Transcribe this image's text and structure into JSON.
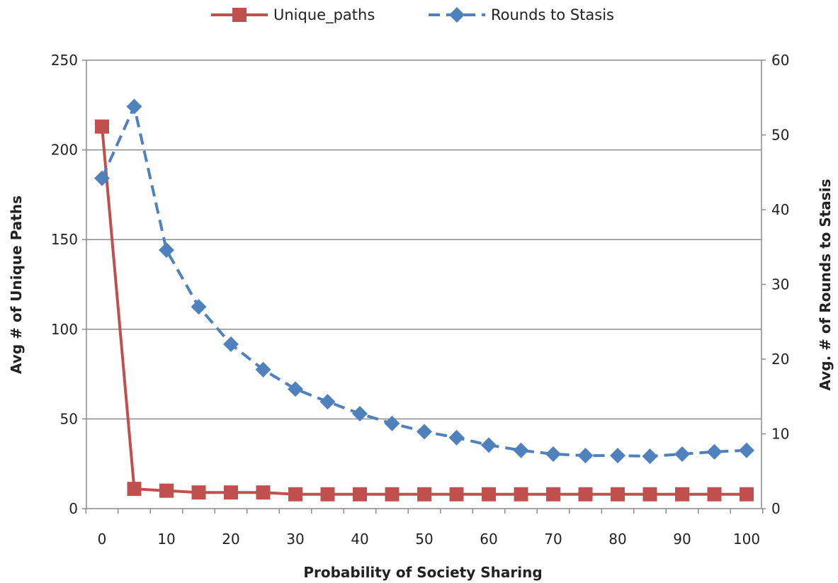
{
  "chart_data": {
    "type": "line",
    "x": [
      0,
      5,
      10,
      15,
      20,
      25,
      30,
      35,
      40,
      45,
      50,
      55,
      60,
      65,
      70,
      75,
      80,
      85,
      90,
      95,
      100
    ],
    "series": [
      {
        "name": "Unique_paths",
        "axis": "left",
        "color": "#c0504d",
        "style": "solid",
        "marker": "square",
        "values": [
          213,
          11,
          10,
          9,
          9,
          9,
          8,
          8,
          8,
          8,
          8,
          8,
          8,
          8,
          8,
          8,
          8,
          8,
          8,
          8,
          8
        ]
      },
      {
        "name": "Rounds to Stasis",
        "axis": "right",
        "color": "#4f81bd",
        "style": "dashed",
        "marker": "diamond",
        "values": [
          44.2,
          53.8,
          34.6,
          27.0,
          22.0,
          18.6,
          16.0,
          14.3,
          12.7,
          11.4,
          10.3,
          9.5,
          8.5,
          7.8,
          7.3,
          7.1,
          7.1,
          7.0,
          7.3,
          7.6,
          7.8
        ]
      }
    ],
    "xlabel": "Probability of Society Sharing",
    "ylabel": "Avg # of Unique  Paths",
    "y2label": "Avg. # of Rounds to Stasis",
    "xticks": [
      "0",
      "10",
      "20",
      "30",
      "40",
      "50",
      "60",
      "70",
      "80",
      "90",
      "100"
    ],
    "yticks": [
      "0",
      "50",
      "100",
      "150",
      "200",
      "250"
    ],
    "y2ticks": [
      "0",
      "10",
      "20",
      "30",
      "40",
      "50",
      "60"
    ],
    "xlim": [
      0,
      100
    ],
    "ylim": [
      0,
      250
    ],
    "y2lim": [
      0,
      60
    ],
    "grid": true,
    "legend": "top-center"
  }
}
